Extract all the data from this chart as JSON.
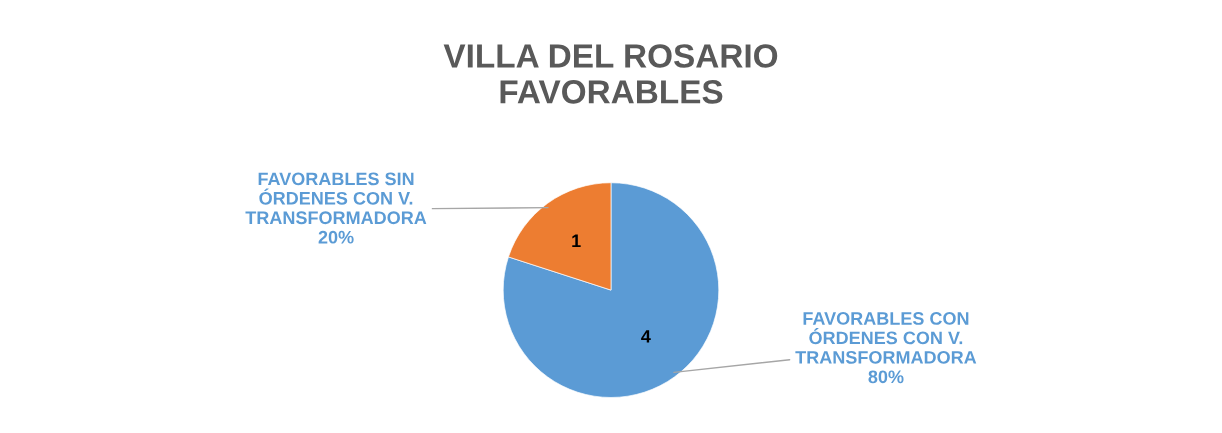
{
  "chart_data": {
    "type": "pie",
    "title": "VILLA DEL ROSARIO\nFAVORABLES",
    "categories": [
      "FAVORABLES CON\nÓRDENES CON V.\nTRANSFORMADORA",
      "FAVORABLES SIN\nÓRDENES CON V.\nTRANSFORMADORA"
    ],
    "values": [
      4,
      1
    ],
    "colors": [
      "#5b9bd5",
      "#ed7d31"
    ],
    "value_labels": [
      "4",
      "1"
    ],
    "annotations": [
      "80%",
      "20%"
    ]
  }
}
